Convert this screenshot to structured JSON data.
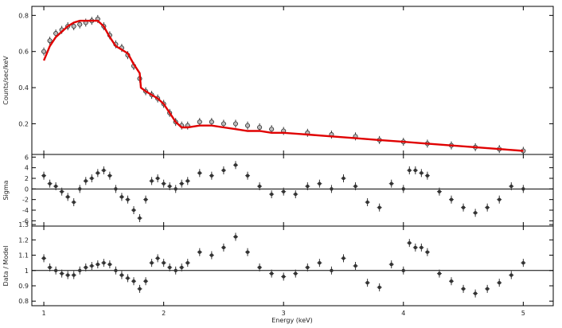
{
  "chart_data": [
    {
      "panel": "spectrum",
      "type": "scatter",
      "xlabel": "",
      "ylabel": "Counts/sec/keV",
      "xlim": [
        0.9,
        5.25
      ],
      "ylim": [
        0.03,
        0.85
      ],
      "yticks": [
        "0.2",
        "0.4",
        "0.6",
        "0.8"
      ],
      "yticks_num": [
        0.2,
        0.4,
        0.6,
        0.8
      ],
      "model_color": "#e00000",
      "data_color": "#333333",
      "series": [
        {
          "kind": "data",
          "x": [
            1.0,
            1.05,
            1.1,
            1.15,
            1.2,
            1.25,
            1.3,
            1.35,
            1.4,
            1.45,
            1.5,
            1.55,
            1.6,
            1.65,
            1.7,
            1.75,
            1.8,
            1.85,
            1.9,
            1.95,
            2.0,
            2.05,
            2.1,
            2.15,
            2.2,
            2.3,
            2.4,
            2.5,
            2.6,
            2.7,
            2.8,
            2.9,
            3.0,
            3.2,
            3.4,
            3.6,
            3.8,
            4.0,
            4.2,
            4.4,
            4.6,
            4.8,
            5.0
          ],
          "y": [
            0.6,
            0.66,
            0.7,
            0.72,
            0.74,
            0.74,
            0.75,
            0.76,
            0.77,
            0.78,
            0.74,
            0.69,
            0.64,
            0.62,
            0.58,
            0.52,
            0.45,
            0.38,
            0.36,
            0.34,
            0.31,
            0.26,
            0.21,
            0.19,
            0.19,
            0.21,
            0.21,
            0.2,
            0.2,
            0.19,
            0.18,
            0.17,
            0.16,
            0.15,
            0.14,
            0.13,
            0.11,
            0.1,
            0.09,
            0.08,
            0.07,
            0.06,
            0.05
          ]
        },
        {
          "kind": "model",
          "x": [
            1.0,
            1.05,
            1.1,
            1.15,
            1.2,
            1.25,
            1.3,
            1.35,
            1.4,
            1.45,
            1.5,
            1.55,
            1.6,
            1.65,
            1.7,
            1.75,
            1.8,
            1.81,
            1.85,
            1.9,
            1.95,
            2.0,
            2.05,
            2.1,
            2.15,
            2.2,
            2.3,
            2.4,
            2.5,
            2.6,
            2.7,
            2.8,
            2.9,
            3.0,
            3.2,
            3.4,
            3.6,
            3.8,
            4.0,
            4.2,
            4.4,
            4.6,
            4.8,
            5.0
          ],
          "y": [
            0.55,
            0.63,
            0.68,
            0.71,
            0.74,
            0.76,
            0.77,
            0.77,
            0.77,
            0.77,
            0.74,
            0.68,
            0.63,
            0.61,
            0.59,
            0.53,
            0.48,
            0.4,
            0.38,
            0.36,
            0.34,
            0.31,
            0.26,
            0.21,
            0.18,
            0.18,
            0.19,
            0.19,
            0.18,
            0.17,
            0.16,
            0.16,
            0.15,
            0.15,
            0.14,
            0.13,
            0.12,
            0.11,
            0.1,
            0.09,
            0.08,
            0.07,
            0.06,
            0.05
          ]
        }
      ]
    },
    {
      "panel": "residuals",
      "type": "scatter",
      "xlabel": "",
      "ylabel": "Sigma",
      "xlim": [
        0.9,
        5.25
      ],
      "ylim": [
        -7,
        6.5
      ],
      "yticks": [
        "-6",
        "-4",
        "-2",
        "0",
        "2",
        "4",
        "6"
      ],
      "yticks_num": [
        -6,
        -4,
        -2,
        0,
        2,
        4,
        6
      ],
      "reference_line": 0,
      "series": [
        {
          "kind": "data",
          "x": [
            1.0,
            1.05,
            1.1,
            1.15,
            1.2,
            1.25,
            1.3,
            1.35,
            1.4,
            1.45,
            1.5,
            1.55,
            1.6,
            1.65,
            1.7,
            1.75,
            1.8,
            1.85,
            1.9,
            1.95,
            2.0,
            2.05,
            2.1,
            2.15,
            2.2,
            2.3,
            2.4,
            2.5,
            2.6,
            2.7,
            2.8,
            2.9,
            3.0,
            3.1,
            3.2,
            3.3,
            3.4,
            3.5,
            3.6,
            3.7,
            3.8,
            3.9,
            4.0,
            4.05,
            4.1,
            4.15,
            4.2,
            4.3,
            4.4,
            4.5,
            4.6,
            4.7,
            4.8,
            4.9,
            5.0
          ],
          "y": [
            2.5,
            1.0,
            0.5,
            -0.5,
            -1.5,
            -2.5,
            0.0,
            1.5,
            2.0,
            3.0,
            3.5,
            2.5,
            0.0,
            -1.5,
            -2.0,
            -4.0,
            -5.5,
            -2.0,
            1.5,
            2.0,
            1.0,
            0.5,
            0.0,
            1.0,
            1.5,
            3.0,
            2.5,
            3.5,
            4.5,
            2.5,
            0.5,
            -1.0,
            -0.5,
            -1.0,
            0.5,
            1.0,
            0.0,
            2.0,
            0.5,
            -2.5,
            -3.5,
            1.0,
            0.0,
            3.5,
            3.5,
            3.0,
            2.5,
            -0.5,
            -2.0,
            -3.5,
            -4.5,
            -3.5,
            -2.0,
            0.5,
            0.0
          ]
        }
      ]
    },
    {
      "panel": "ratio",
      "type": "scatter",
      "xlabel": "Energy (keV)",
      "ylabel": "Data / Model",
      "xlim": [
        0.9,
        5.25
      ],
      "ylim": [
        0.77,
        1.29
      ],
      "yticks": [
        "0.8",
        "0.9",
        "1",
        "1.1",
        "1.2",
        "1.3"
      ],
      "yticks_num": [
        0.8,
        0.9,
        1.0,
        1.1,
        1.2,
        1.3
      ],
      "xticks": [
        "1",
        "2",
        "3",
        "4",
        "5"
      ],
      "xticks_num": [
        1,
        2,
        3,
        4,
        5
      ],
      "reference_line": 1,
      "series": [
        {
          "kind": "data",
          "x": [
            1.0,
            1.05,
            1.1,
            1.15,
            1.2,
            1.25,
            1.3,
            1.35,
            1.4,
            1.45,
            1.5,
            1.55,
            1.6,
            1.65,
            1.7,
            1.75,
            1.8,
            1.85,
            1.9,
            1.95,
            2.0,
            2.05,
            2.1,
            2.15,
            2.2,
            2.3,
            2.4,
            2.5,
            2.6,
            2.7,
            2.8,
            2.9,
            3.0,
            3.1,
            3.2,
            3.3,
            3.4,
            3.5,
            3.6,
            3.7,
            3.8,
            3.9,
            4.0,
            4.05,
            4.1,
            4.15,
            4.2,
            4.3,
            4.4,
            4.5,
            4.6,
            4.7,
            4.8,
            4.9,
            5.0
          ],
          "y": [
            1.08,
            1.02,
            1.0,
            0.98,
            0.97,
            0.97,
            1.0,
            1.02,
            1.03,
            1.04,
            1.05,
            1.04,
            1.0,
            0.97,
            0.95,
            0.93,
            0.88,
            0.93,
            1.05,
            1.08,
            1.05,
            1.02,
            1.0,
            1.02,
            1.05,
            1.12,
            1.1,
            1.15,
            1.22,
            1.12,
            1.02,
            0.98,
            0.96,
            0.98,
            1.02,
            1.05,
            1.0,
            1.08,
            1.03,
            0.92,
            0.89,
            1.04,
            1.0,
            1.18,
            1.15,
            1.15,
            1.12,
            0.98,
            0.93,
            0.88,
            0.85,
            0.88,
            0.92,
            0.97,
            1.05
          ]
        }
      ]
    }
  ]
}
